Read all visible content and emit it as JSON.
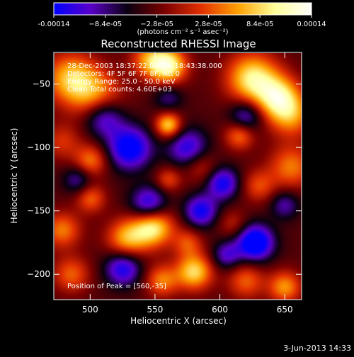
{
  "chart_data": {
    "type": "heatmap",
    "title": "Reconstructed RHESSI Image",
    "xlabel": "Heliocentric X (arcsec)",
    "ylabel": "Heliocentric Y (arcsec)",
    "xlim": [
      472,
      663
    ],
    "ylim": [
      -220,
      -25
    ],
    "x_ticks": [
      500,
      550,
      600,
      650
    ],
    "y_ticks": [
      -50,
      -100,
      -150,
      -200
    ],
    "colorbar": {
      "range": [
        -0.00014,
        0.00014
      ],
      "tick_values": [
        -0.00014,
        -8.4e-05,
        -2.8e-05,
        2.8e-05,
        8.4e-05,
        0.00014
      ],
      "tick_labels": [
        "-0.00014",
        "−8.4e-05",
        "−2.8e-05",
        "2.8e-05",
        "8.4e-05",
        "0.00014"
      ],
      "unit_label": "(photons cm⁻² s⁻¹ asec⁻²)",
      "colors": [
        "#0000ff",
        "#5a00c8",
        "#0a0010",
        "#7a0000",
        "#e23000",
        "#ffa000",
        "#ffff9a",
        "#ffffff"
      ]
    },
    "annotations": [
      "28-Dec-2003 18:37:22.000 to 18:43:38.000",
      "Detectors: 4F 5F 6F 7F 8F, Att 0",
      "Energy Range: 25.0 - 50.0 keV",
      "Clean    Total counts: 4.60E+03",
      "Position of Peak = [560,-35]"
    ],
    "peak_position": [
      560,
      -35
    ],
    "sources": [
      {
        "x": 485,
        "y": -45,
        "v": 0.00011,
        "s": 14
      },
      {
        "x": 505,
        "y": -60,
        "v": 9e-05,
        "s": 14
      },
      {
        "x": 560,
        "y": -35,
        "v": 0.00014,
        "s": 10
      },
      {
        "x": 545,
        "y": -30,
        "v": 8e-05,
        "s": 10
      },
      {
        "x": 625,
        "y": -45,
        "v": 0.00013,
        "s": 14
      },
      {
        "x": 645,
        "y": -60,
        "v": 0.00012,
        "s": 12
      },
      {
        "x": 655,
        "y": -75,
        "v": 8e-05,
        "s": 12
      },
      {
        "x": 560,
        "y": -82,
        "v": 0.00012,
        "s": 7
      },
      {
        "x": 615,
        "y": -90,
        "v": 8e-05,
        "s": 8
      },
      {
        "x": 478,
        "y": -95,
        "v": 5e-05,
        "s": 10
      },
      {
        "x": 500,
        "y": -110,
        "v": 8e-05,
        "s": 9
      },
      {
        "x": 500,
        "y": -140,
        "v": 7e-05,
        "s": 8
      },
      {
        "x": 560,
        "y": -125,
        "v": 6e-05,
        "s": 7
      },
      {
        "x": 585,
        "y": -115,
        "v": 5e-05,
        "s": 9
      },
      {
        "x": 655,
        "y": -115,
        "v": 8e-05,
        "s": 12
      },
      {
        "x": 630,
        "y": -130,
        "v": 6e-05,
        "s": 9
      },
      {
        "x": 548,
        "y": -162,
        "v": 0.00014,
        "s": 11
      },
      {
        "x": 528,
        "y": -172,
        "v": 0.0001,
        "s": 11
      },
      {
        "x": 478,
        "y": -165,
        "v": 8e-05,
        "s": 10
      },
      {
        "x": 485,
        "y": -200,
        "v": 7e-05,
        "s": 10
      },
      {
        "x": 575,
        "y": -175,
        "v": 6e-05,
        "s": 8
      },
      {
        "x": 580,
        "y": -198,
        "v": 0.00012,
        "s": 10
      },
      {
        "x": 555,
        "y": -205,
        "v": 8e-05,
        "s": 9
      },
      {
        "x": 620,
        "y": -205,
        "v": 7e-05,
        "s": 10
      },
      {
        "x": 650,
        "y": -210,
        "v": 9e-05,
        "s": 9
      },
      {
        "x": 610,
        "y": -160,
        "v": 4e-05,
        "s": 8
      },
      {
        "x": 510,
        "y": -75,
        "v": -0.0001,
        "s": 11
      },
      {
        "x": 530,
        "y": -100,
        "v": -0.00012,
        "s": 12
      },
      {
        "x": 575,
        "y": -100,
        "v": -9e-05,
        "s": 11
      },
      {
        "x": 620,
        "y": -75,
        "v": -8e-05,
        "s": 9
      },
      {
        "x": 602,
        "y": -128,
        "v": -0.0001,
        "s": 9
      },
      {
        "x": 545,
        "y": -145,
        "v": -0.00011,
        "s": 10
      },
      {
        "x": 525,
        "y": -195,
        "v": -0.0001,
        "s": 10
      },
      {
        "x": 585,
        "y": -150,
        "v": -0.0001,
        "s": 9
      },
      {
        "x": 627,
        "y": -175,
        "v": -0.00014,
        "s": 10
      },
      {
        "x": 650,
        "y": -145,
        "v": -6e-05,
        "s": 8
      },
      {
        "x": 605,
        "y": -185,
        "v": -7e-05,
        "s": 8
      },
      {
        "x": 490,
        "y": -125,
        "v": -6e-05,
        "s": 8
      },
      {
        "x": 560,
        "y": -60,
        "v": -5e-05,
        "s": 8
      }
    ]
  },
  "date_stamp": "3-Jun-2013 14:33"
}
